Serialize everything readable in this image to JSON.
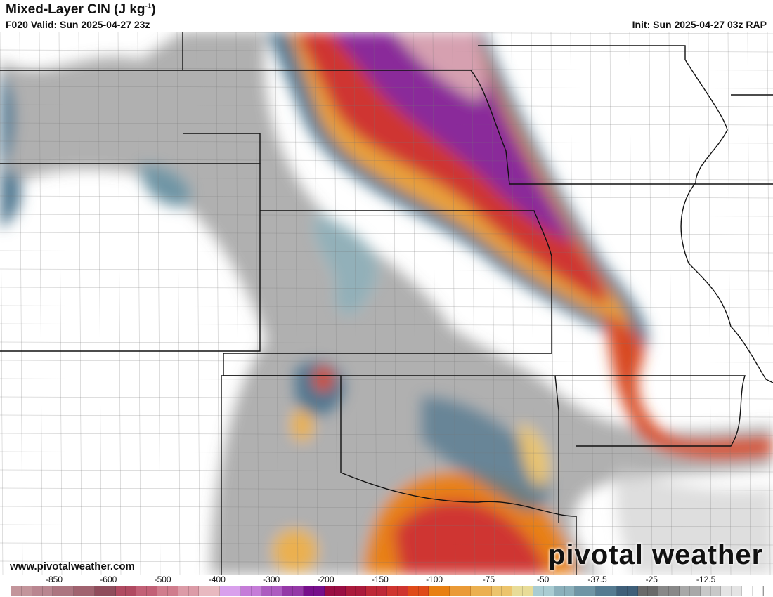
{
  "header": {
    "title": "Mixed-Layer CIN (J kg",
    "title_sup": "-1",
    "title_end": ")",
    "valid": "F020 Valid: Sun 2025-04-27 23z",
    "init": "Init: Sun 2025-04-27 03z RAP"
  },
  "footer": {
    "website": "www.pivotalweather.com",
    "logo": "pivotal weather"
  },
  "colorbar": {
    "labels": [
      "-850",
      "-600",
      "-500",
      "-400",
      "-300",
      "-200",
      "-150",
      "-100",
      "-75",
      "-50",
      "-37.5",
      "-25",
      "-12.5"
    ],
    "colors": [
      "#c3959b",
      "#b98690",
      "#ac7580",
      "#a0636f",
      "#8f4c5b",
      "#b04a61",
      "#c26076",
      "#d07d8d",
      "#dc9ba7",
      "#e8b9c0",
      "#d9a0ec",
      "#c57cd8",
      "#ad5cc0",
      "#9538a7",
      "#770f8b",
      "#9a0e43",
      "#ab1a3c",
      "#be2838",
      "#cf3530",
      "#df4a19",
      "#e88012",
      "#ea9a36",
      "#ebb050",
      "#ecc46c",
      "#e8dc98",
      "#a9ccd2",
      "#8bb0bb",
      "#6f95a5",
      "#557b91",
      "#3f5f79",
      "#6a6a6a",
      "#888",
      "#a8a8a8",
      "#c8c8c8",
      "#e4e4e4",
      "#ffffff"
    ]
  }
}
